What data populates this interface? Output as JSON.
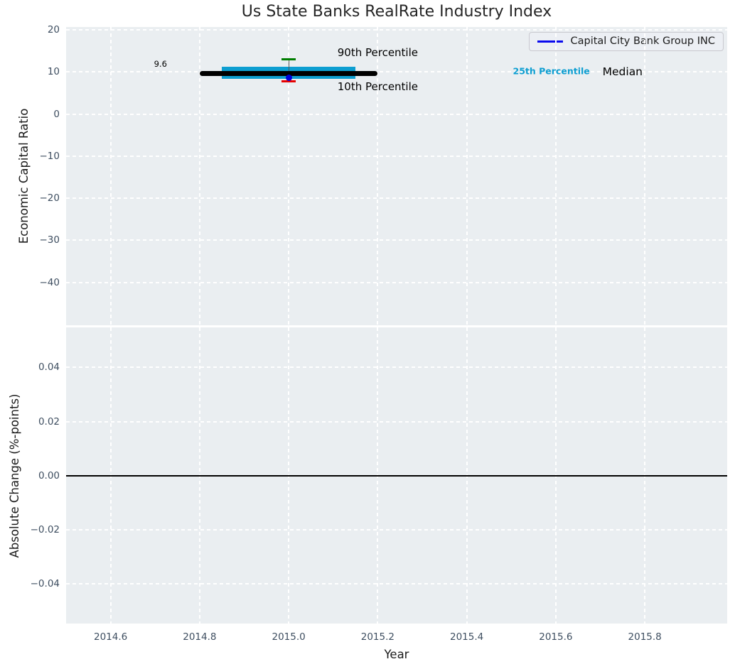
{
  "title": "Us State Banks RealRate Industry Index",
  "colors": {
    "axes_bg": "#eaeef1",
    "grid": "#ffffff",
    "tick_label": "#3e4e60",
    "box_fill": "#0d9ed1",
    "median_line": "#000000",
    "whisker": "#555555",
    "p90_cap": "#007d00",
    "p10_cap": "#e60000",
    "company_dot": "#0000dd",
    "legend_line": "#0a0aee",
    "zero_line": "#000000"
  },
  "chart_data": [
    {
      "type": "box",
      "title": "Us State Banks RealRate Industry Index",
      "ylabel": "Economic Capital Ratio",
      "xlabel": "",
      "xlim": [
        2014.5,
        2015.985
      ],
      "ylim": [
        -50.2,
        20.7
      ],
      "grid": true,
      "legend_position": "upper right",
      "legend": [
        {
          "label": "Capital City Bank Group INC",
          "color": "#0a0aee"
        }
      ],
      "xticks": [
        {
          "v": 2014.6,
          "label": "2014.6"
        },
        {
          "v": 2014.8,
          "label": "2014.8"
        },
        {
          "v": 2015.0,
          "label": "2015.0"
        },
        {
          "v": 2015.2,
          "label": "2015.2"
        },
        {
          "v": 2015.4,
          "label": "2015.4"
        },
        {
          "v": 2015.6,
          "label": "2015.6"
        },
        {
          "v": 2015.8,
          "label": "2015.8"
        }
      ],
      "yticks": [
        {
          "v": 20,
          "label": "20"
        },
        {
          "v": 10,
          "label": "10"
        },
        {
          "v": 0,
          "label": "0"
        },
        {
          "v": -10,
          "label": "−10"
        },
        {
          "v": -20,
          "label": "−20"
        },
        {
          "v": -30,
          "label": "−30"
        },
        {
          "v": -40,
          "label": "−40"
        }
      ],
      "box": {
        "x": 2015.0,
        "median": 9.6,
        "median_label": "9.6",
        "median_span": [
          2014.8,
          2015.2
        ],
        "q1": 8.3,
        "q3": 11.3,
        "box_span": [
          2014.85,
          2015.15
        ],
        "p10": 7.8,
        "p90": 13.0,
        "cap_half_width": 0.016,
        "company": {
          "name": "Capital City Bank Group INC",
          "x": 2015.0,
          "value": 8.6
        }
      },
      "annotations": [
        {
          "text": "9.6",
          "x": 2014.712,
          "y": 11.9,
          "size": 11.5,
          "color": "#000000",
          "weight": "normal"
        },
        {
          "text": "90th Percentile",
          "x": 2015.2,
          "y": 14.6,
          "size": 15,
          "color": "#000000",
          "weight": "normal"
        },
        {
          "text": "10th Percentile",
          "x": 2015.2,
          "y": 6.5,
          "size": 15,
          "color": "#000000",
          "weight": "normal"
        },
        {
          "text": "25th Percentile",
          "x": 2015.59,
          "y": 10.2,
          "size": 12.5,
          "color": "#0d9ed1",
          "weight": "bold"
        },
        {
          "text": "Median",
          "x": 2015.75,
          "y": 10.1,
          "size": 15.5,
          "color": "#000000",
          "weight": "normal"
        }
      ]
    },
    {
      "type": "line",
      "ylabel": "Absolute Change (%-points)",
      "xlabel": "Year",
      "xlim": [
        2014.5,
        2015.985
      ],
      "ylim": [
        -0.0546,
        0.0548
      ],
      "grid": true,
      "zero_line": 0.0,
      "series": [],
      "xticks": [
        {
          "v": 2014.6,
          "label": "2014.6"
        },
        {
          "v": 2014.8,
          "label": "2014.8"
        },
        {
          "v": 2015.0,
          "label": "2015.0"
        },
        {
          "v": 2015.2,
          "label": "2015.2"
        },
        {
          "v": 2015.4,
          "label": "2015.4"
        },
        {
          "v": 2015.6,
          "label": "2015.6"
        },
        {
          "v": 2015.8,
          "label": "2015.8"
        }
      ],
      "yticks": [
        {
          "v": 0.04,
          "label": "0.04"
        },
        {
          "v": 0.02,
          "label": "0.02"
        },
        {
          "v": 0.0,
          "label": "0.00"
        },
        {
          "v": -0.02,
          "label": "−0.02"
        },
        {
          "v": -0.04,
          "label": "−0.04"
        }
      ]
    }
  ]
}
